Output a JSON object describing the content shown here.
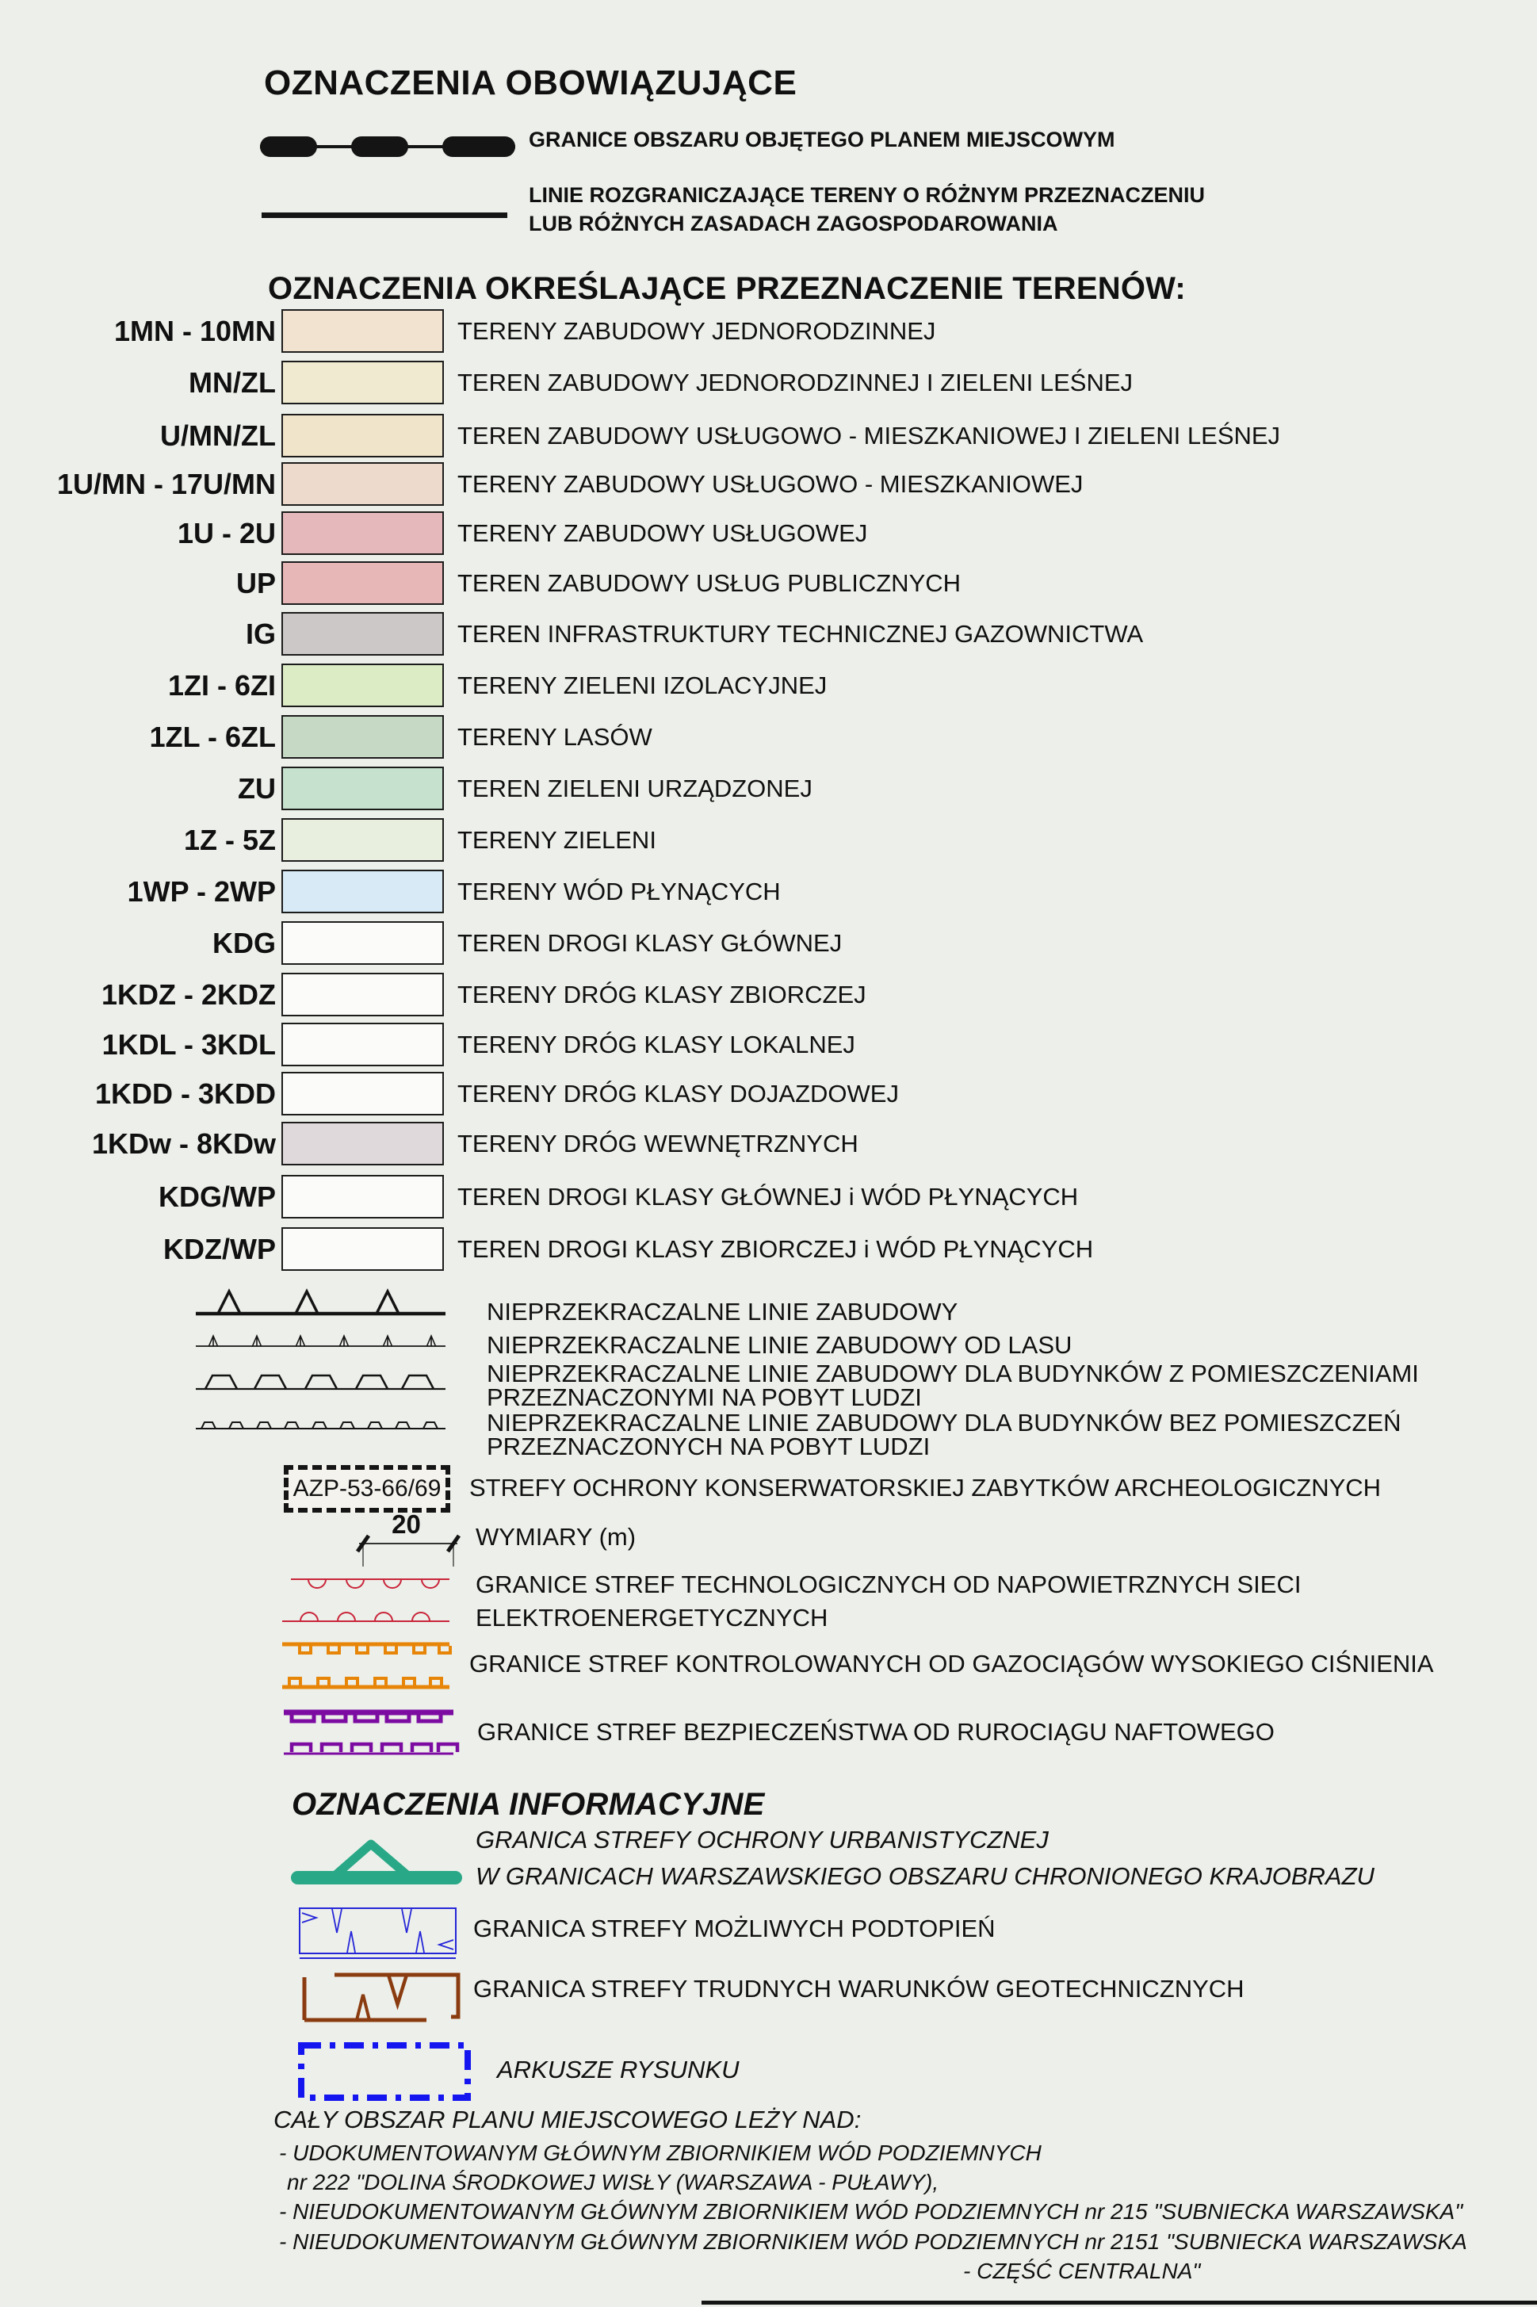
{
  "colors": {
    "background": "#edf0ea",
    "ink": "#141414",
    "power_line_red": "#c9243a",
    "gas_line_orange": "#e78508",
    "oil_line_purple": "#7c0ca1",
    "urban_zone_teal": "#29a887",
    "flood_zone_blue": "#2525d8",
    "geotech_brown": "#8a3c10",
    "sheet_frame_blue": "#1515f0"
  },
  "header": {
    "title": "OZNACZENIA OBOWIĄZUJĄCE"
  },
  "boundaries": [
    {
      "label": "GRANICE OBSZARU OBJĘTEGO PLANEM MIEJSCOWYM"
    },
    {
      "label_lines": [
        "LINIE ROZGRANICZAJĄCE TERENY O RÓŻNYM PRZEZNACZENIU",
        "LUB RÓŻNYCH ZASADACH ZAGOSPODAROWANIA"
      ]
    }
  ],
  "land_use": {
    "heading": "OZNACZENIA OKREŚLAJĄCE PRZEZNACZENIE TERENÓW:",
    "rows": [
      {
        "code": "1MN - 10MN",
        "color": "#f1e3cf",
        "desc": "TERENY ZABUDOWY JEDNORODZINNEJ"
      },
      {
        "code": "MN/ZL",
        "color": "#f0ead0",
        "desc": "TEREN ZABUDOWY JEDNORODZINNEJ I ZIELENI LEŚNEJ"
      },
      {
        "code": "U/MN/ZL",
        "color": "#f0e4cb",
        "desc": "TEREN ZABUDOWY USŁUGOWO - MIESZKANIOWEJ I ZIELENI LEŚNEJ"
      },
      {
        "code": "1U/MN - 17U/MN",
        "color": "#eedacc",
        "desc": "TERENY ZABUDOWY USŁUGOWO - MIESZKANIOWEJ"
      },
      {
        "code": "1U - 2U",
        "color": "#e5b9bb",
        "desc": "TERENY ZABUDOWY USŁUGOWEJ"
      },
      {
        "code": "UP",
        "color": "#e7b6b6",
        "desc": "TEREN ZABUDOWY USŁUG PUBLICZNYCH"
      },
      {
        "code": "IG",
        "color": "#cbc8c7",
        "desc": "TEREN INFRASTRUKTURY TECHNICZNEJ GAZOWNICTWA"
      },
      {
        "code": "1ZI - 6ZI",
        "color": "#dcecc5",
        "desc": "TERENY ZIELENI IZOLACYJNEJ"
      },
      {
        "code": "1ZL - 6ZL",
        "color": "#c6d9c5",
        "desc": "TERENY LASÓW"
      },
      {
        "code": "ZU",
        "color": "#c7e1cf",
        "desc": "TEREN ZIELENI URZĄDZONEJ"
      },
      {
        "code": "1Z - 5Z",
        "color": "#e9efdf",
        "desc": "TERENY ZIELENI"
      },
      {
        "code": "1WP - 2WP",
        "color": "#d8eaf6",
        "desc": "TERENY WÓD PŁYNĄCYCH"
      },
      {
        "code": "KDG",
        "color": "#fbfbf9",
        "desc": "TEREN DROGI KLASY GŁÓWNEJ"
      },
      {
        "code": "1KDZ - 2KDZ",
        "color": "#fbfbf9",
        "desc": "TERENY DRÓG KLASY ZBIORCZEJ"
      },
      {
        "code": "1KDL - 3KDL",
        "color": "#fbfbf9",
        "desc": "TERENY DRÓG KLASY LOKALNEJ"
      },
      {
        "code": "1KDD - 3KDD",
        "color": "#fbfbf9",
        "desc": "TERENY DRÓG KLASY DOJAZDOWEJ"
      },
      {
        "code": "1KDw - 8KDw",
        "color": "#dfd9dc",
        "desc": "TERENY DRÓG  WEWNĘTRZNYCH"
      },
      {
        "code": "KDG/WP",
        "color": "#fbfbf9",
        "desc": "TEREN DROGI KLASY GŁÓWNEJ i WÓD PŁYNĄCYCH"
      },
      {
        "code": "KDZ/WP",
        "color": "#fbfbf9",
        "desc": "TEREN DROGI KLASY ZBIORCZEJ  i WÓD PŁYNĄCYCH"
      }
    ]
  },
  "building_lines": [
    {
      "label_lines": [
        "NIEPRZEKRACZALNE LINIE ZABUDOWY"
      ]
    },
    {
      "label_lines": [
        "NIEPRZEKRACZALNE LINIE ZABUDOWY OD LASU"
      ]
    },
    {
      "label_lines": [
        "NIEPRZEKRACZALNE LINIE ZABUDOWY DLA BUDYNKÓW Z POMIESZCZENIAMI",
        "PRZEZNACZONYMI NA POBYT LUDZI"
      ]
    },
    {
      "label_lines": [
        "NIEPRZEKRACZALNE LINIE ZABUDOWY DLA BUDYNKÓW BEZ POMIESZCZEŃ",
        "PRZEZNACZONYCH NA POBYT LUDZI"
      ]
    }
  ],
  "archaeology": {
    "box_label": "AZP-53-66/69",
    "desc": "STREFY OCHRONY KONSERWATORSKIEJ ZABYTKÓW ARCHEOLOGICZNYCH"
  },
  "dimensions": {
    "value": "20",
    "desc": "WYMIARY (m)"
  },
  "zone_boundaries": [
    {
      "label_lines": [
        "GRANICE STREF TECHNOLOGICZNYCH OD  NAPOWIETRZNYCH SIECI",
        "ELEKTROENERGETYCZNYCH"
      ]
    },
    {
      "label_lines": [
        "GRANICE STREF KONTROLOWANYCH OD GAZOCIĄGÓW WYSOKIEGO CIŚNIENIA"
      ]
    },
    {
      "label_lines": [
        "GRANICE STREF BEZPIECZEŃSTWA OD RUROCIĄGU NAFTOWEGO"
      ]
    }
  ],
  "informational": {
    "heading": "OZNACZENIA INFORMACYJNE",
    "urban_zone_lines": [
      "GRANICA STREFY OCHRONY URBANISTYCZNEJ",
      "W GRANICACH WARSZAWSKIEGO OBSZARU CHRONIONEGO KRAJOBRAZU"
    ],
    "flood_zone": "GRANICA STREFY MOŻLIWYCH PODTOPIEŃ",
    "geotech_zone": "GRANICA STREFY TRUDNYCH WARUNKÓW GEOTECHNICZNYCH",
    "sheets": "ARKUSZE RYSUNKU"
  },
  "footer": {
    "intro": "CAŁY OBSZAR PLANU MIEJSCOWEGO LEŻY NAD:",
    "lines": [
      "- UDOKUMENTOWANYM GŁÓWNYM ZBIORNIKIEM WÓD PODZIEMNYCH",
      "nr 222 \"DOLINA ŚRODKOWEJ WISŁY  (WARSZAWA - PUŁAWY),",
      "- NIEUDOKUMENTOWANYM GŁÓWNYM ZBIORNIKIEM WÓD PODZIEMNYCH  nr 215  \"SUBNIECKA WARSZAWSKA\"",
      "- NIEUDOKUMENTOWANYM GŁÓWNYM ZBIORNIKIEM WÓD PODZIEMNYCH nr 2151 \"SUBNIECKA WARSZAWSKA",
      "- CZĘŚĆ CENTRALNA\""
    ]
  }
}
